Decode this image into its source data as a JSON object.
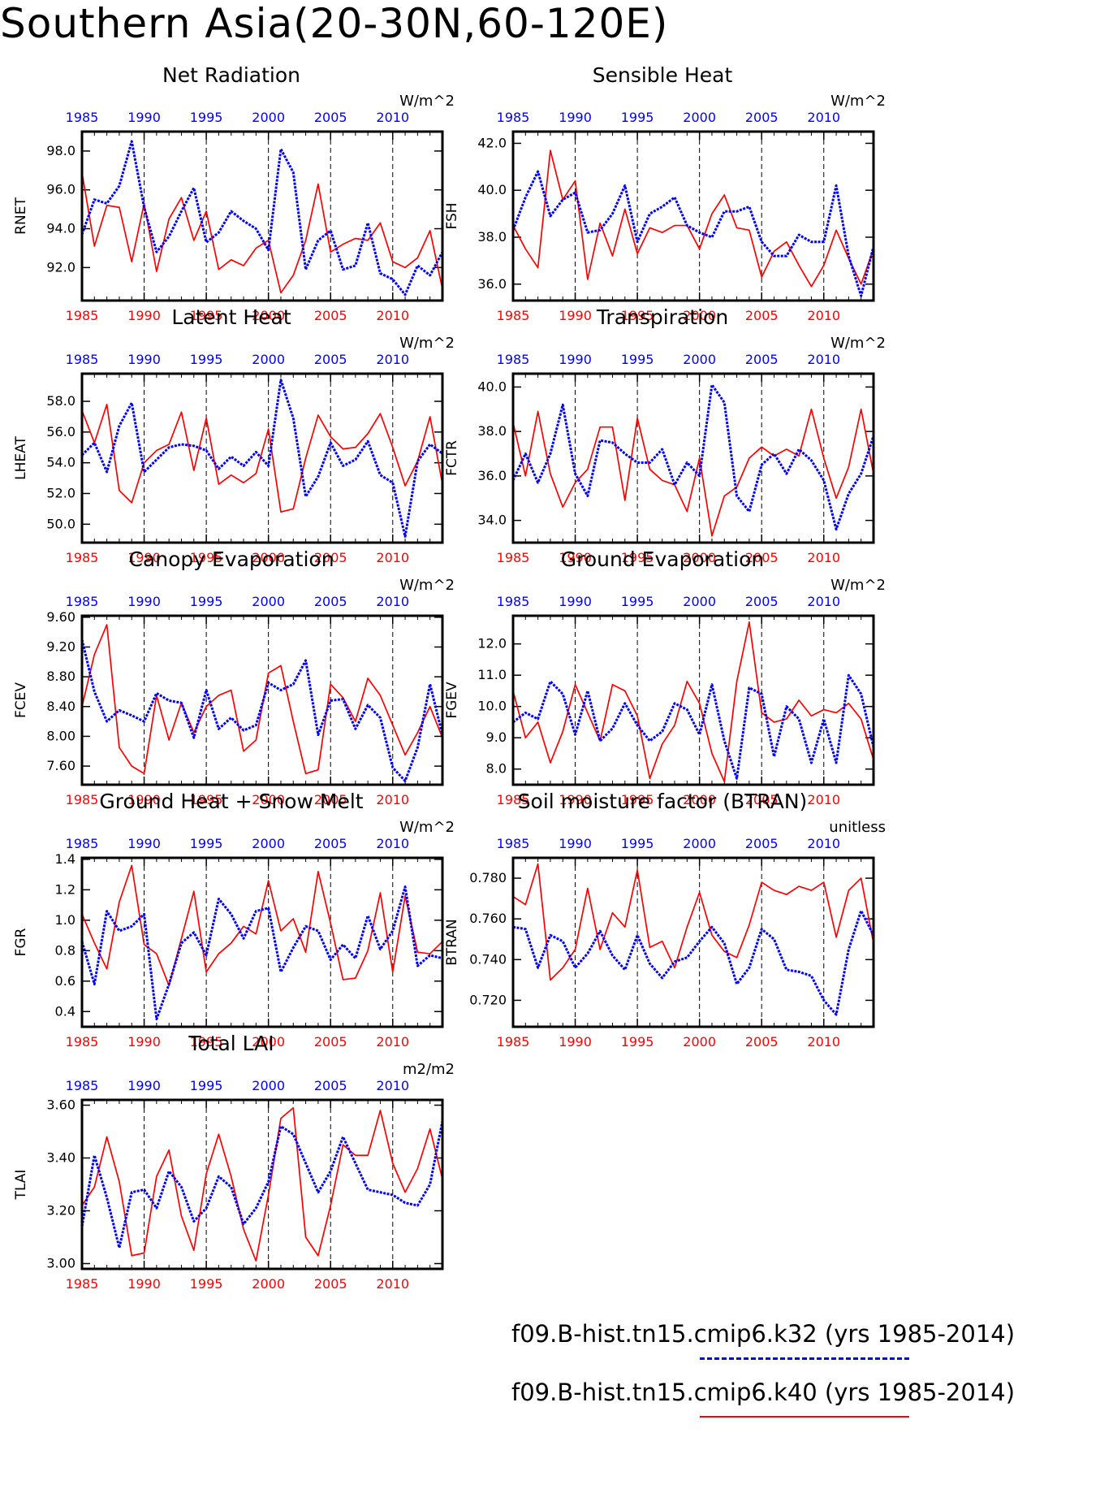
{
  "title": "Southern Asia(20-30N,60-120E)",
  "colors": {
    "k32": "#0000ff",
    "k40": "#ff0000"
  },
  "legend": [
    {
      "label": "f09.B-hist.tn15.cmip6.k32 (yrs 1985-2014)",
      "color": "#0000ff",
      "style": "dashed"
    },
    {
      "label": "f09.B-hist.tn15.cmip6.k40 (yrs 1985-2014)",
      "color": "#ff0000",
      "style": "solid"
    }
  ],
  "chart_data": [
    {
      "type": "line",
      "title": "Net Radiation",
      "ylabel": "RNET",
      "units": "W/m^2",
      "xlim": [
        1985,
        2014
      ],
      "ylim": [
        90.3,
        99.0
      ],
      "yticks": [
        "92.0",
        "94.0",
        "96.0",
        "98.0"
      ],
      "xticks": [
        "1985",
        "1990",
        "1995",
        "2000",
        "2005",
        "2010"
      ],
      "series": [
        {
          "name": "f09.B-hist.tn15.cmip6.k40",
          "color": "#ff0000",
          "values": [
            96.9,
            93.1,
            95.2,
            95.1,
            92.3,
            95.3,
            91.8,
            94.5,
            95.6,
            93.4,
            94.9,
            91.9,
            92.4,
            92.1,
            93.0,
            93.4,
            90.7,
            91.6,
            93.4,
            96.3,
            92.8,
            93.2,
            93.5,
            93.4,
            94.3,
            92.3,
            92.0,
            92.5,
            93.9,
            90.9
          ]
        },
        {
          "name": "f09.B-hist.tn15.cmip6.k32",
          "color": "#0000ff",
          "values": [
            93.7,
            95.5,
            95.3,
            96.2,
            98.5,
            95.1,
            92.8,
            93.6,
            94.9,
            96.1,
            93.3,
            93.8,
            94.9,
            94.4,
            94.0,
            92.9,
            98.1,
            96.9,
            91.9,
            93.4,
            93.9,
            91.9,
            92.1,
            94.3,
            91.7,
            91.4,
            90.6,
            92.1,
            91.6,
            92.8
          ]
        }
      ]
    },
    {
      "type": "line",
      "title": "Sensible Heat",
      "ylabel": "FSH",
      "units": "W/m^2",
      "xlim": [
        1985,
        2014
      ],
      "ylim": [
        35.3,
        42.5
      ],
      "yticks": [
        "36.0",
        "38.0",
        "40.0",
        "42.0"
      ],
      "xticks": [
        "1985",
        "1990",
        "1995",
        "2000",
        "2005",
        "2010"
      ],
      "series": [
        {
          "name": "f09.B-hist.tn15.cmip6.k40",
          "color": "#ff0000",
          "values": [
            38.5,
            37.5,
            36.7,
            41.7,
            39.6,
            40.4,
            36.2,
            38.6,
            37.2,
            39.2,
            37.3,
            38.4,
            38.2,
            38.5,
            38.5,
            37.5,
            39.0,
            39.8,
            38.4,
            38.3,
            36.3,
            37.4,
            37.8,
            36.8,
            35.9,
            36.8,
            38.3,
            37.1,
            36.0,
            37.5
          ]
        },
        {
          "name": "f09.B-hist.tn15.cmip6.k32",
          "color": "#0000ff",
          "values": [
            38.3,
            39.7,
            40.8,
            38.9,
            39.6,
            39.9,
            38.2,
            38.3,
            39.0,
            40.2,
            37.8,
            39.0,
            39.3,
            39.7,
            38.5,
            38.2,
            38.0,
            39.1,
            39.1,
            39.3,
            37.8,
            37.2,
            37.2,
            38.1,
            37.8,
            37.8,
            40.2,
            37.2,
            35.5,
            37.6
          ]
        }
      ]
    },
    {
      "type": "line",
      "title": "Latent Heat",
      "ylabel": "LHEAT",
      "units": "W/m^2",
      "xlim": [
        1985,
        2014
      ],
      "ylim": [
        48.8,
        59.8
      ],
      "yticks": [
        "50.0",
        "52.0",
        "54.0",
        "56.0",
        "58.0"
      ],
      "xticks": [
        "1985",
        "1990",
        "1995",
        "2000",
        "2005",
        "2010"
      ],
      "series": [
        {
          "name": "f09.B-hist.tn15.cmip6.k40",
          "color": "#ff0000",
          "values": [
            57.4,
            55.3,
            57.8,
            52.2,
            51.4,
            54.0,
            54.8,
            55.2,
            57.3,
            53.5,
            56.9,
            52.6,
            53.2,
            52.7,
            53.3,
            56.2,
            50.8,
            51.0,
            54.3,
            57.1,
            55.7,
            54.9,
            55.0,
            55.9,
            57.2,
            55.0,
            52.5,
            54.1,
            57.0,
            52.6
          ]
        },
        {
          "name": "f09.B-hist.tn15.cmip6.k32",
          "color": "#0000ff",
          "values": [
            54.5,
            55.3,
            53.4,
            56.4,
            57.9,
            53.4,
            54.2,
            55.0,
            55.2,
            55.1,
            54.8,
            53.6,
            54.4,
            53.8,
            54.7,
            53.8,
            59.4,
            56.9,
            51.8,
            53.1,
            55.3,
            53.8,
            54.2,
            55.4,
            53.2,
            52.7,
            49.2,
            54.1,
            55.2,
            54.6
          ]
        }
      ]
    },
    {
      "type": "line",
      "title": "Transpiration",
      "ylabel": "FCTR",
      "units": "W/m^2",
      "xlim": [
        1985,
        2014
      ],
      "ylim": [
        33.0,
        40.6
      ],
      "yticks": [
        "34.0",
        "36.0",
        "38.0",
        "40.0"
      ],
      "xticks": [
        "1985",
        "1990",
        "1995",
        "2000",
        "2005",
        "2010"
      ],
      "series": [
        {
          "name": "f09.B-hist.tn15.cmip6.k40",
          "color": "#ff0000",
          "values": [
            38.4,
            36.0,
            38.9,
            36.1,
            34.6,
            35.7,
            36.3,
            38.2,
            38.2,
            34.9,
            38.6,
            36.3,
            35.8,
            35.6,
            34.4,
            36.8,
            33.3,
            35.1,
            35.5,
            36.8,
            37.3,
            36.9,
            37.2,
            36.9,
            39.0,
            36.8,
            35.0,
            36.4,
            39.0,
            36.1
          ]
        },
        {
          "name": "f09.B-hist.tn15.cmip6.k32",
          "color": "#0000ff",
          "values": [
            35.8,
            37.0,
            35.7,
            37.0,
            39.2,
            36.1,
            35.1,
            37.6,
            37.5,
            37.0,
            36.6,
            36.6,
            37.2,
            35.6,
            36.6,
            36.0,
            40.1,
            39.3,
            35.1,
            34.4,
            36.5,
            37.0,
            36.1,
            37.2,
            36.7,
            35.8,
            33.6,
            35.2,
            36.1,
            37.8
          ]
        }
      ]
    },
    {
      "type": "line",
      "title": "Canopy Evaporation",
      "ylabel": "FCEV",
      "units": "W/m^2",
      "xlim": [
        1985,
        2014
      ],
      "ylim": [
        7.35,
        9.62
      ],
      "yticks": [
        "7.60",
        "8.00",
        "8.40",
        "8.80",
        "9.20",
        "9.60"
      ],
      "xticks": [
        "1985",
        "1990",
        "1995",
        "2000",
        "2005",
        "2010"
      ],
      "series": [
        {
          "name": "f09.B-hist.tn15.cmip6.k40",
          "color": "#ff0000",
          "values": [
            8.4,
            9.1,
            9.5,
            7.85,
            7.6,
            7.5,
            8.55,
            7.95,
            8.45,
            8.05,
            8.4,
            8.55,
            8.62,
            7.8,
            7.95,
            8.85,
            8.95,
            8.2,
            7.5,
            7.55,
            8.7,
            8.52,
            8.2,
            8.78,
            8.55,
            8.15,
            7.75,
            8.05,
            8.4,
            7.98
          ]
        },
        {
          "name": "f09.B-hist.tn15.cmip6.k32",
          "color": "#0000ff",
          "values": [
            9.3,
            8.6,
            8.2,
            8.35,
            8.28,
            8.2,
            8.58,
            8.48,
            8.45,
            7.98,
            8.62,
            8.1,
            8.25,
            8.08,
            8.15,
            8.72,
            8.62,
            8.7,
            9.02,
            8.02,
            8.48,
            8.5,
            8.1,
            8.42,
            8.25,
            7.58,
            7.4,
            7.85,
            8.7,
            8.02
          ]
        }
      ]
    },
    {
      "type": "line",
      "title": "Ground Evaporation",
      "ylabel": "FGEV",
      "units": "W/m^2",
      "xlim": [
        1985,
        2014
      ],
      "ylim": [
        7.5,
        12.9
      ],
      "yticks": [
        "8.0",
        "9.0",
        "10.0",
        "11.0",
        "12.0"
      ],
      "xticks": [
        "1985",
        "1990",
        "1995",
        "2000",
        "2005",
        "2010"
      ],
      "series": [
        {
          "name": "f09.B-hist.tn15.cmip6.k40",
          "color": "#ff0000",
          "values": [
            10.5,
            9.0,
            9.5,
            8.2,
            9.2,
            10.7,
            9.8,
            8.9,
            10.7,
            10.5,
            9.7,
            7.7,
            8.8,
            9.4,
            10.8,
            10.1,
            8.5,
            7.6,
            10.8,
            12.7,
            9.8,
            9.5,
            9.6,
            10.2,
            9.7,
            9.9,
            9.8,
            10.1,
            9.6,
            8.3
          ]
        },
        {
          "name": "f09.B-hist.tn15.cmip6.k32",
          "color": "#0000ff",
          "values": [
            9.5,
            9.8,
            9.6,
            10.8,
            10.4,
            9.1,
            10.5,
            8.9,
            9.3,
            10.1,
            9.4,
            8.9,
            9.2,
            10.1,
            9.9,
            9.1,
            10.7,
            8.9,
            7.7,
            10.6,
            10.4,
            8.4,
            10.0,
            9.6,
            8.2,
            9.6,
            8.2,
            11.0,
            10.4,
            8.7
          ]
        }
      ]
    },
    {
      "type": "line",
      "title": "Ground Heat + Snow Melt",
      "ylabel": "FGR",
      "units": "W/m^2",
      "xlim": [
        1985,
        2014
      ],
      "ylim": [
        0.3,
        1.41
      ],
      "yticks": [
        "0.4",
        "0.6",
        "0.8",
        "1.0",
        "1.2",
        "1.4"
      ],
      "xticks": [
        "1985",
        "1990",
        "1995",
        "2000",
        "2005",
        "2010"
      ],
      "series": [
        {
          "name": "f09.B-hist.tn15.cmip6.k40",
          "color": "#ff0000",
          "values": [
            1.04,
            0.85,
            0.68,
            1.12,
            1.36,
            0.84,
            0.78,
            0.57,
            0.88,
            1.19,
            0.66,
            0.78,
            0.85,
            0.96,
            0.91,
            1.26,
            0.93,
            1.01,
            0.79,
            1.32,
            0.98,
            0.61,
            0.62,
            0.8,
            1.18,
            0.66,
            1.16,
            0.79,
            0.78,
            0.86
          ]
        },
        {
          "name": "f09.B-hist.tn15.cmip6.k32",
          "color": "#0000ff",
          "values": [
            0.86,
            0.58,
            1.06,
            0.93,
            0.96,
            1.04,
            0.35,
            0.58,
            0.85,
            0.92,
            0.77,
            1.14,
            1.04,
            0.88,
            1.06,
            1.08,
            0.66,
            0.82,
            0.96,
            0.93,
            0.74,
            0.84,
            0.75,
            1.03,
            0.81,
            0.93,
            1.22,
            0.7,
            0.77,
            0.75
          ]
        }
      ]
    },
    {
      "type": "line",
      "title": "Soil moisture factor (BTRAN)",
      "ylabel": "BTRAN",
      "units": "unitless",
      "xlim": [
        1985,
        2014
      ],
      "ylim": [
        0.707,
        0.79
      ],
      "yticks": [
        "0.720",
        "0.740",
        "0.760",
        "0.780"
      ],
      "xticks": [
        "1985",
        "1990",
        "1995",
        "2000",
        "2005",
        "2010"
      ],
      "series": [
        {
          "name": "f09.B-hist.tn15.cmip6.k40",
          "color": "#ff0000",
          "values": [
            0.771,
            0.767,
            0.787,
            0.73,
            0.736,
            0.745,
            0.775,
            0.745,
            0.763,
            0.756,
            0.784,
            0.746,
            0.749,
            0.736,
            0.756,
            0.773,
            0.752,
            0.744,
            0.741,
            0.757,
            0.778,
            0.774,
            0.772,
            0.776,
            0.774,
            0.778,
            0.751,
            0.774,
            0.78,
            0.748
          ]
        },
        {
          "name": "f09.B-hist.tn15.cmip6.k32",
          "color": "#0000ff",
          "values": [
            0.756,
            0.755,
            0.736,
            0.752,
            0.749,
            0.736,
            0.743,
            0.754,
            0.742,
            0.735,
            0.752,
            0.738,
            0.731,
            0.739,
            0.741,
            0.749,
            0.756,
            0.748,
            0.728,
            0.736,
            0.755,
            0.75,
            0.735,
            0.734,
            0.732,
            0.72,
            0.713,
            0.745,
            0.764,
            0.752
          ]
        }
      ]
    },
    {
      "type": "line",
      "title": "Total LAI",
      "ylabel": "TLAI",
      "units": "m2/m2",
      "xlim": [
        1985,
        2014
      ],
      "ylim": [
        2.98,
        3.62
      ],
      "yticks": [
        "3.00",
        "3.20",
        "3.40",
        "3.60"
      ],
      "xticks": [
        "1985",
        "1990",
        "1995",
        "2000",
        "2005",
        "2010"
      ],
      "series": [
        {
          "name": "f09.B-hist.tn15.cmip6.k40",
          "color": "#ff0000",
          "values": [
            3.22,
            3.29,
            3.48,
            3.31,
            3.03,
            3.04,
            3.33,
            3.43,
            3.18,
            3.05,
            3.34,
            3.49,
            3.33,
            3.13,
            3.01,
            3.26,
            3.55,
            3.59,
            3.1,
            3.03,
            3.22,
            3.45,
            3.41,
            3.41,
            3.58,
            3.38,
            3.27,
            3.36,
            3.51,
            3.32
          ]
        },
        {
          "name": "f09.B-hist.tn15.cmip6.k32",
          "color": "#0000ff",
          "values": [
            3.14,
            3.41,
            3.25,
            3.06,
            3.27,
            3.28,
            3.21,
            3.35,
            3.29,
            3.16,
            3.21,
            3.33,
            3.29,
            3.15,
            3.21,
            3.31,
            3.52,
            3.49,
            3.38,
            3.27,
            3.35,
            3.48,
            3.38,
            3.28,
            3.27,
            3.26,
            3.23,
            3.22,
            3.3,
            3.54
          ]
        }
      ]
    }
  ]
}
